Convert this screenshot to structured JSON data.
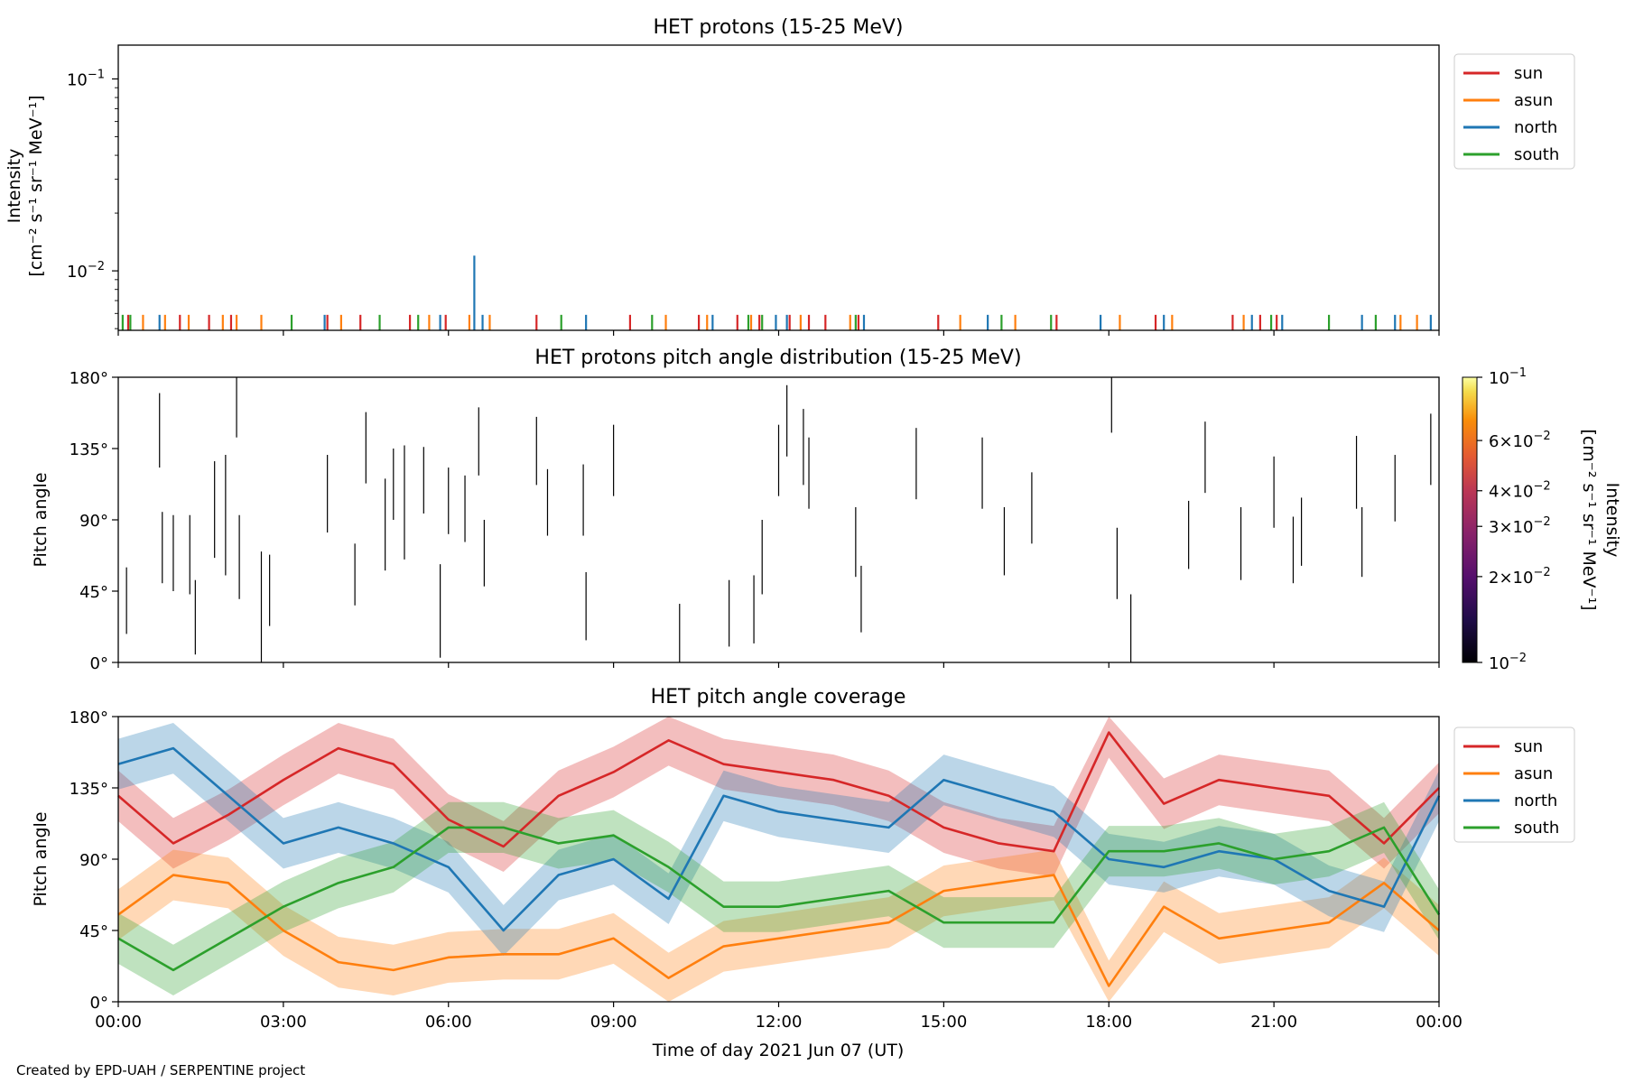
{
  "figure": {
    "xlabel": "Time of day 2021 Jun 07 (UT)",
    "x_ticks": [
      "00:00",
      "03:00",
      "06:00",
      "09:00",
      "12:00",
      "15:00",
      "18:00",
      "21:00",
      "00:00"
    ],
    "credit": "Created by EPD-UAH / SERPENTINE project"
  },
  "colors": {
    "sun": "#d62728",
    "asun": "#ff7f0e",
    "north": "#1f77b4",
    "south": "#2ca02c"
  },
  "chart_data": [
    {
      "type": "line",
      "title": "HET protons (15-25 MeV)",
      "ylabel": [
        "Intensity",
        "[cm⁻² s⁻¹ sr⁻¹ MeV⁻¹]"
      ],
      "yscale": "log",
      "ylim": [
        0.0049,
        0.15
      ],
      "xlim_hours": [
        0,
        24
      ],
      "y_ticks": [
        {
          "value": 0.1,
          "base": "10",
          "exp": "−1"
        },
        {
          "value": 0.01,
          "base": "10",
          "exp": "−2"
        }
      ],
      "legend": {
        "placement": "outside-right",
        "entries": [
          "sun",
          "asun",
          "north",
          "south"
        ]
      },
      "series": [
        {
          "name": "sun",
          "color": "#d62728",
          "spikes": [
            {
              "x": 0.18,
              "y": 0.0059
            },
            {
              "x": 1.12,
              "y": 0.0059
            },
            {
              "x": 1.65,
              "y": 0.0059
            },
            {
              "x": 2.05,
              "y": 0.0059
            },
            {
              "x": 3.8,
              "y": 0.0059
            },
            {
              "x": 4.4,
              "y": 0.0059
            },
            {
              "x": 5.3,
              "y": 0.0059
            },
            {
              "x": 5.95,
              "y": 0.0059
            },
            {
              "x": 7.6,
              "y": 0.0059
            },
            {
              "x": 9.3,
              "y": 0.0059
            },
            {
              "x": 10.55,
              "y": 0.0059
            },
            {
              "x": 11.25,
              "y": 0.0059
            },
            {
              "x": 11.65,
              "y": 0.0059
            },
            {
              "x": 12.2,
              "y": 0.0059
            },
            {
              "x": 12.55,
              "y": 0.0059
            },
            {
              "x": 12.85,
              "y": 0.0059
            },
            {
              "x": 13.45,
              "y": 0.0059
            },
            {
              "x": 14.9,
              "y": 0.0059
            },
            {
              "x": 17.05,
              "y": 0.0059
            },
            {
              "x": 18.85,
              "y": 0.0059
            },
            {
              "x": 20.25,
              "y": 0.0059
            },
            {
              "x": 20.75,
              "y": 0.0059
            },
            {
              "x": 21.05,
              "y": 0.0059
            }
          ]
        },
        {
          "name": "asun",
          "color": "#ff7f0e",
          "spikes": [
            {
              "x": 0.45,
              "y": 0.0059
            },
            {
              "x": 0.85,
              "y": 0.0059
            },
            {
              "x": 1.28,
              "y": 0.0059
            },
            {
              "x": 1.9,
              "y": 0.0059
            },
            {
              "x": 2.15,
              "y": 0.0059
            },
            {
              "x": 2.6,
              "y": 0.0059
            },
            {
              "x": 4.05,
              "y": 0.0059
            },
            {
              "x": 5.65,
              "y": 0.0059
            },
            {
              "x": 6.38,
              "y": 0.0059
            },
            {
              "x": 6.75,
              "y": 0.0059
            },
            {
              "x": 9.95,
              "y": 0.0059
            },
            {
              "x": 10.7,
              "y": 0.0059
            },
            {
              "x": 11.5,
              "y": 0.0059
            },
            {
              "x": 12.4,
              "y": 0.0059
            },
            {
              "x": 13.3,
              "y": 0.0059
            },
            {
              "x": 15.3,
              "y": 0.0059
            },
            {
              "x": 16.3,
              "y": 0.0059
            },
            {
              "x": 18.2,
              "y": 0.0059
            },
            {
              "x": 19.15,
              "y": 0.0059
            },
            {
              "x": 20.45,
              "y": 0.0059
            },
            {
              "x": 23.3,
              "y": 0.0059
            },
            {
              "x": 23.6,
              "y": 0.0059
            }
          ]
        },
        {
          "name": "north",
          "color": "#1f77b4",
          "spikes": [
            {
              "x": 0.75,
              "y": 0.0059
            },
            {
              "x": 3.75,
              "y": 0.0059
            },
            {
              "x": 5.85,
              "y": 0.0059
            },
            {
              "x": 6.47,
              "y": 0.012
            },
            {
              "x": 6.62,
              "y": 0.0059
            },
            {
              "x": 8.5,
              "y": 0.0059
            },
            {
              "x": 10.8,
              "y": 0.0059
            },
            {
              "x": 11.95,
              "y": 0.0059
            },
            {
              "x": 12.15,
              "y": 0.0059
            },
            {
              "x": 13.55,
              "y": 0.0059
            },
            {
              "x": 15.8,
              "y": 0.0059
            },
            {
              "x": 17.85,
              "y": 0.0059
            },
            {
              "x": 19.0,
              "y": 0.0059
            },
            {
              "x": 20.6,
              "y": 0.0059
            },
            {
              "x": 21.15,
              "y": 0.0059
            },
            {
              "x": 22.6,
              "y": 0.0059
            },
            {
              "x": 23.2,
              "y": 0.0059
            },
            {
              "x": 23.85,
              "y": 0.0059
            }
          ]
        },
        {
          "name": "south",
          "color": "#2ca02c",
          "spikes": [
            {
              "x": 0.08,
              "y": 0.0059
            },
            {
              "x": 0.22,
              "y": 0.0059
            },
            {
              "x": 3.15,
              "y": 0.0059
            },
            {
              "x": 4.75,
              "y": 0.0059
            },
            {
              "x": 5.45,
              "y": 0.0059
            },
            {
              "x": 8.05,
              "y": 0.0059
            },
            {
              "x": 9.7,
              "y": 0.0059
            },
            {
              "x": 11.45,
              "y": 0.0059
            },
            {
              "x": 11.7,
              "y": 0.0059
            },
            {
              "x": 13.4,
              "y": 0.0059
            },
            {
              "x": 16.05,
              "y": 0.0059
            },
            {
              "x": 16.95,
              "y": 0.0059
            },
            {
              "x": 20.95,
              "y": 0.0059
            },
            {
              "x": 22.0,
              "y": 0.0059
            },
            {
              "x": 22.85,
              "y": 0.0059
            }
          ]
        }
      ]
    },
    {
      "type": "heatmap",
      "title": "HET protons pitch angle distribution (15-25 MeV)",
      "ylabel": "Pitch angle",
      "ylim": [
        0,
        180
      ],
      "xlim_hours": [
        0,
        24
      ],
      "y_ticks": [
        "0°",
        "45°",
        "90°",
        "135°",
        "180°"
      ],
      "colorbar": {
        "label": [
          "Intensity",
          "[cm⁻² s⁻¹ sr⁻¹ MeV⁻¹]"
        ],
        "scale": "log",
        "range": [
          0.01,
          0.1
        ],
        "colormap": "inferno",
        "ticks": [
          {
            "value": 0.1,
            "mant": "",
            "exp": "−1"
          },
          {
            "value": 0.06,
            "mant": "6×",
            "exp": "−2"
          },
          {
            "value": 0.04,
            "mant": "4×",
            "exp": "−2"
          },
          {
            "value": 0.03,
            "mant": "3×",
            "exp": "−2"
          },
          {
            "value": 0.02,
            "mant": "2×",
            "exp": "−2"
          },
          {
            "value": 0.01,
            "mant": "",
            "exp": "−2"
          }
        ]
      },
      "marks": [
        {
          "t": 0.15,
          "lo": 18,
          "hi": 60
        },
        {
          "t": 0.75,
          "lo": 123,
          "hi": 170
        },
        {
          "t": 0.8,
          "lo": 50,
          "hi": 95
        },
        {
          "t": 1.0,
          "lo": 45,
          "hi": 93
        },
        {
          "t": 1.3,
          "lo": 43,
          "hi": 93
        },
        {
          "t": 1.4,
          "lo": 5,
          "hi": 52
        },
        {
          "t": 1.75,
          "lo": 66,
          "hi": 127
        },
        {
          "t": 1.95,
          "lo": 55,
          "hi": 131
        },
        {
          "t": 2.15,
          "lo": 142,
          "hi": 180
        },
        {
          "t": 2.2,
          "lo": 40,
          "hi": 93
        },
        {
          "t": 2.6,
          "lo": 0,
          "hi": 70
        },
        {
          "t": 2.75,
          "lo": 23,
          "hi": 68
        },
        {
          "t": 3.8,
          "lo": 82,
          "hi": 131
        },
        {
          "t": 4.3,
          "lo": 36,
          "hi": 75
        },
        {
          "t": 4.5,
          "lo": 113,
          "hi": 158
        },
        {
          "t": 4.85,
          "lo": 58,
          "hi": 116
        },
        {
          "t": 5.0,
          "lo": 90,
          "hi": 135
        },
        {
          "t": 5.2,
          "lo": 65,
          "hi": 137
        },
        {
          "t": 5.55,
          "lo": 94,
          "hi": 136
        },
        {
          "t": 5.85,
          "lo": 3,
          "hi": 62
        },
        {
          "t": 6.0,
          "lo": 81,
          "hi": 123
        },
        {
          "t": 6.3,
          "lo": 76,
          "hi": 118
        },
        {
          "t": 6.55,
          "lo": 118,
          "hi": 161
        },
        {
          "t": 6.65,
          "lo": 48,
          "hi": 90
        },
        {
          "t": 7.6,
          "lo": 112,
          "hi": 155
        },
        {
          "t": 7.8,
          "lo": 80,
          "hi": 122
        },
        {
          "t": 8.45,
          "lo": 80,
          "hi": 125
        },
        {
          "t": 8.5,
          "lo": 14,
          "hi": 57
        },
        {
          "t": 9.0,
          "lo": 105,
          "hi": 150
        },
        {
          "t": 10.2,
          "lo": 0,
          "hi": 37
        },
        {
          "t": 11.1,
          "lo": 10,
          "hi": 52
        },
        {
          "t": 11.55,
          "lo": 12,
          "hi": 55
        },
        {
          "t": 11.7,
          "lo": 43,
          "hi": 90
        },
        {
          "t": 12.0,
          "lo": 105,
          "hi": 150
        },
        {
          "t": 12.15,
          "lo": 130,
          "hi": 175
        },
        {
          "t": 12.45,
          "lo": 112,
          "hi": 160
        },
        {
          "t": 12.55,
          "lo": 97,
          "hi": 142
        },
        {
          "t": 13.4,
          "lo": 54,
          "hi": 98
        },
        {
          "t": 13.5,
          "lo": 19,
          "hi": 61
        },
        {
          "t": 14.5,
          "lo": 103,
          "hi": 148
        },
        {
          "t": 15.7,
          "lo": 97,
          "hi": 142
        },
        {
          "t": 16.1,
          "lo": 55,
          "hi": 98
        },
        {
          "t": 16.6,
          "lo": 75,
          "hi": 120
        },
        {
          "t": 18.05,
          "lo": 145,
          "hi": 180
        },
        {
          "t": 18.15,
          "lo": 40,
          "hi": 85
        },
        {
          "t": 18.4,
          "lo": 0,
          "hi": 43
        },
        {
          "t": 19.45,
          "lo": 59,
          "hi": 102
        },
        {
          "t": 19.75,
          "lo": 107,
          "hi": 152
        },
        {
          "t": 20.4,
          "lo": 52,
          "hi": 98
        },
        {
          "t": 21.0,
          "lo": 85,
          "hi": 130
        },
        {
          "t": 21.35,
          "lo": 50,
          "hi": 92
        },
        {
          "t": 21.5,
          "lo": 61,
          "hi": 104
        },
        {
          "t": 22.5,
          "lo": 97,
          "hi": 143
        },
        {
          "t": 22.6,
          "lo": 54,
          "hi": 98
        },
        {
          "t": 23.2,
          "lo": 89,
          "hi": 131
        },
        {
          "t": 23.85,
          "lo": 112,
          "hi": 157
        }
      ]
    },
    {
      "type": "area",
      "title": "HET pitch angle coverage",
      "ylabel": "Pitch angle",
      "ylim": [
        0,
        180
      ],
      "xlim_hours": [
        0,
        24
      ],
      "y_ticks": [
        "0°",
        "45°",
        "90°",
        "135°",
        "180°"
      ],
      "legend": {
        "placement": "outside-right",
        "entries": [
          "sun",
          "asun",
          "north",
          "south"
        ]
      },
      "band_halfwidth_deg": 16,
      "x": [
        0,
        1,
        2,
        3,
        4,
        5,
        6,
        7,
        8,
        9,
        10,
        11,
        12,
        13,
        14,
        15,
        16,
        17,
        18,
        19,
        20,
        21,
        22,
        23,
        24
      ],
      "series": [
        {
          "name": "sun",
          "color": "#d62728",
          "values": [
            130,
            100,
            118,
            140,
            160,
            150,
            115,
            98,
            130,
            145,
            165,
            150,
            145,
            140,
            130,
            110,
            100,
            95,
            170,
            125,
            140,
            135,
            130,
            100,
            135
          ]
        },
        {
          "name": "asun",
          "color": "#ff7f0e",
          "values": [
            55,
            80,
            75,
            45,
            25,
            20,
            28,
            30,
            30,
            40,
            15,
            35,
            40,
            45,
            50,
            70,
            75,
            80,
            10,
            60,
            40,
            45,
            50,
            75,
            45
          ]
        },
        {
          "name": "north",
          "color": "#1f77b4",
          "values": [
            150,
            160,
            130,
            100,
            110,
            100,
            85,
            45,
            80,
            90,
            65,
            130,
            120,
            115,
            110,
            140,
            130,
            120,
            90,
            85,
            95,
            90,
            70,
            60,
            130
          ]
        },
        {
          "name": "south",
          "color": "#2ca02c",
          "values": [
            40,
            20,
            40,
            60,
            75,
            85,
            110,
            110,
            100,
            105,
            85,
            60,
            60,
            65,
            70,
            50,
            50,
            50,
            95,
            95,
            100,
            90,
            95,
            110,
            55
          ]
        }
      ]
    }
  ]
}
